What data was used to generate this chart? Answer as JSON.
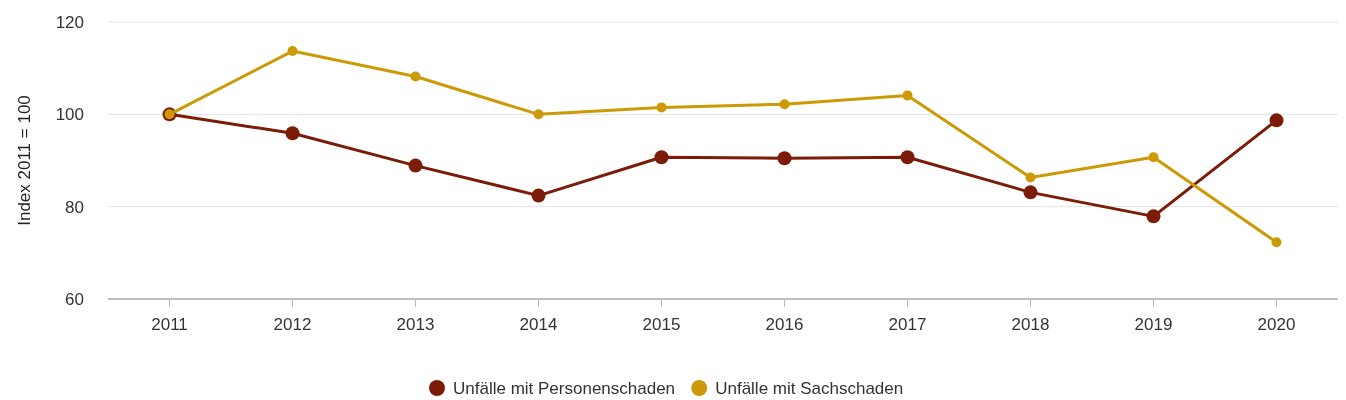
{
  "chart_data": {
    "type": "line",
    "ylabel": "Index 2011 = 100",
    "categories": [
      "2011",
      "2012",
      "2013",
      "2014",
      "2015",
      "2016",
      "2017",
      "2018",
      "2019",
      "2020"
    ],
    "series": [
      {
        "name": "Unfälle mit Personenschaden",
        "color": "#7a1c08",
        "values": [
          100,
          95.9,
          88.9,
          82.4,
          90.7,
          90.5,
          90.7,
          83.1,
          77.9,
          98.7
        ]
      },
      {
        "name": "Unfälle mit Sachschaden",
        "color": "#cc9a06",
        "values": [
          100,
          113.7,
          108.2,
          100,
          101.5,
          102.2,
          104.1,
          86.3,
          90.7,
          72.3
        ]
      }
    ],
    "ylim": [
      60,
      120
    ],
    "yticks": [
      60,
      80,
      100,
      120
    ],
    "grid": "y",
    "legend": "bottom",
    "marker": "circle",
    "line_style": "solid"
  }
}
